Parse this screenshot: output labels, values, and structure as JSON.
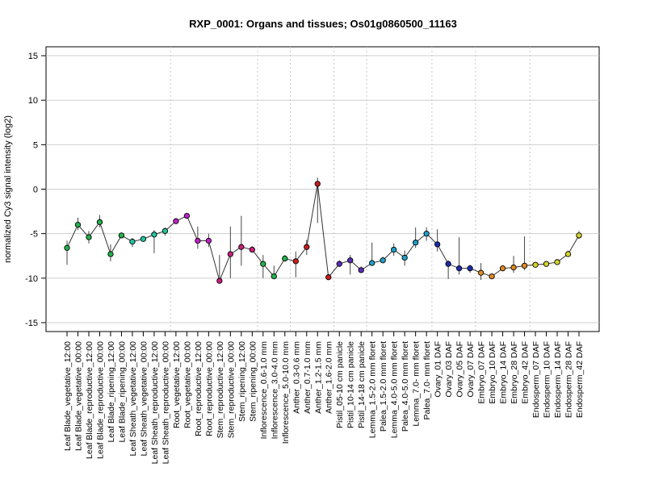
{
  "chart_data": {
    "type": "line",
    "title": "RXP_0001: Organs and tissues; Os01g0860500_11163",
    "xlabel": "",
    "ylabel": "normalized Cy3 signal intensity (log2)",
    "ylim": [
      -16,
      16
    ],
    "yticks": [
      -15,
      -10,
      -5,
      0,
      5,
      10,
      15
    ],
    "grid": {
      "horizontal": true,
      "vertical_dotted": true
    },
    "categories": [
      "Leaf Blade_vegetative_12:00",
      "Leaf Blade_vegetative_00:00",
      "Leaf Blade_reproductive_12:00",
      "Leaf Blade_reproductive_00:00",
      "Leaf Blade_ripening_12:00",
      "Leaf Blade_ripening_00:00",
      "Leaf Sheath_vegetative_12:00",
      "Leaf Sheath_vegetative_00:00",
      "Leaf Sheath_reproductive_12:00",
      "Leaf Sheath_reproductive_00:00",
      "Root_vegetative_12:00",
      "Root_vegetative_00:00",
      "Root_reproductive_12:00",
      "Root_reproductive_00:00",
      "Stem_reproductive_12:00",
      "Stem_reproductive_00:00",
      "Stem_ripening_12:00",
      "Stem_ripening_00:00",
      "Inflorescence_0.6-1.0 mm",
      "Inflorescence_3.0-4.0 mm",
      "Inflorescence_5.0-10.0 mm",
      "Anther_0.3-0.6 mm",
      "Anther_0.7-1.0 mm",
      "Anther_1.2-1.5 mm",
      "Anther_1.6-2.0 mm",
      "Pistil_05-10 cm panicle",
      "Pistil_10-14 cm panicle",
      "Pistil_14-18 cm panicle",
      "Lemma_1.5-2.0 mm floret",
      "Palea_1.5-2.0 mm floret",
      "Lemma_4.0-5.0 mm floret",
      "Palea_4.0-5.0 mm floret",
      "Lemma_7.0- mm floret",
      "Palea_7.0- mm floret",
      "Ovary_01 DAF",
      "Ovary_03 DAF",
      "Ovary_05 DAF",
      "Ovary_07 DAF",
      "Embryo_07 DAF",
      "Embryo_10 DAF",
      "Embryo_14 DAF",
      "Embryo_28 DAF",
      "Embryo_42 DAF",
      "Endosperm_07 DAF",
      "Endosperm_10 DAF",
      "Endosperm_14 DAF",
      "Endosperm_28 DAF",
      "Endosperm_42 DAF"
    ],
    "series": [
      {
        "values": [
          -6.6,
          -4.0,
          -5.4,
          -3.7,
          -7.3,
          -5.2,
          -5.9,
          -5.6,
          -5.1,
          -4.7,
          -3.6,
          -3.0,
          -5.8,
          -5.8,
          -10.3,
          -7.3,
          -6.5,
          -6.8,
          -8.4,
          -9.8,
          -7.8,
          -8.1,
          -6.5,
          0.6,
          -9.9,
          -8.4,
          -8.0,
          -9.1,
          -8.3,
          -8.0,
          -6.8,
          -7.7,
          -6.0,
          -5.0,
          -6.2,
          -8.4,
          -8.9,
          -8.9,
          -9.4,
          -9.8,
          -8.9,
          -8.8,
          -8.6,
          -8.5,
          -8.4,
          -8.2,
          -7.3,
          -5.2
        ],
        "error_low": [
          -8.5,
          -4.6,
          -6.1,
          -4.3,
          -8.1,
          -5.5,
          -6.5,
          -5.9,
          -7.2,
          -5.2,
          -3.9,
          -3.2,
          -6.7,
          -6.5,
          -10.5,
          -10.0,
          -8.6,
          -7.1,
          -10.0,
          -10.0,
          -8.1,
          -9.9,
          -7.4,
          -3.8,
          -10.0,
          -8.7,
          -9.6,
          -9.4,
          -8.6,
          -8.3,
          -7.5,
          -8.6,
          -6.6,
          -5.8,
          -7.0,
          -10.1,
          -9.6,
          -9.4,
          -10.2,
          -10.0,
          -9.1,
          -9.4,
          -9.1,
          -8.7,
          -8.6,
          -8.5,
          -7.6,
          -5.6
        ],
        "error_high": [
          -5.8,
          -3.2,
          -4.7,
          -2.9,
          -6.2,
          -4.9,
          -5.5,
          -5.3,
          -4.6,
          -4.3,
          -3.3,
          -2.8,
          -4.2,
          -5.0,
          -7.4,
          -4.2,
          -3.0,
          -6.4,
          -7.4,
          -8.6,
          -7.4,
          -7.0,
          -5.7,
          1.3,
          -9.6,
          -8.0,
          -7.4,
          -8.7,
          -6.0,
          -7.6,
          -6.1,
          -6.9,
          -4.3,
          -4.3,
          -4.5,
          -8.0,
          -5.4,
          -8.5,
          -8.3,
          -9.5,
          -8.6,
          -7.5,
          -5.3,
          -8.2,
          -8.1,
          -7.9,
          -6.9,
          -4.7
        ]
      }
    ],
    "point_colors": [
      "#22b14c",
      "#22b14c",
      "#22b14c",
      "#22b14c",
      "#22b14c",
      "#22b14c",
      "#22c5a0",
      "#22c5a0",
      "#22c5a0",
      "#22c5a0",
      "#c020c8",
      "#c020c8",
      "#c020c8",
      "#c020c8",
      "#c8207a",
      "#c8207a",
      "#c8207a",
      "#c8207a",
      "#22b14c",
      "#22b14c",
      "#22b14c",
      "#c81e1e",
      "#c81e1e",
      "#c81e1e",
      "#c81e1e",
      "#5b2db8",
      "#5b2db8",
      "#5b2db8",
      "#1ea0c8",
      "#1ea0c8",
      "#1ea0c8",
      "#1ea0c8",
      "#1ea0c8",
      "#1ea0c8",
      "#1a2bb0",
      "#1a2bb0",
      "#1a2bb0",
      "#1a2bb0",
      "#e08a1e",
      "#e08a1e",
      "#e08a1e",
      "#e08a1e",
      "#e08a1e",
      "#d4d42a",
      "#d4d42a",
      "#d4d42a",
      "#d4d42a",
      "#d4d42a"
    ]
  }
}
